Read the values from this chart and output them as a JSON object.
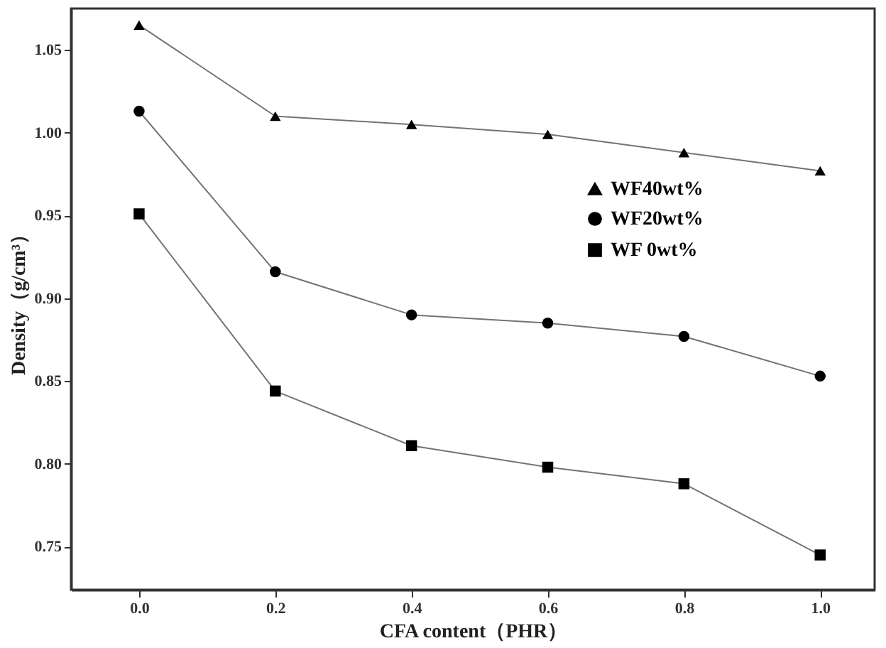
{
  "chart_data": {
    "type": "line",
    "xlabel": "CFA content（PHR）",
    "ylabel": "Density（g/cm³）",
    "x": [
      0.0,
      0.2,
      0.4,
      0.6,
      0.8,
      1.0
    ],
    "series": [
      {
        "name": "WF40wt%",
        "color": "#000000",
        "marker": "triangle",
        "values": [
          1.065,
          1.01,
          1.005,
          0.999,
          0.988,
          0.977
        ]
      },
      {
        "name": "WF20wt%",
        "color": "#000000",
        "marker": "circle",
        "values": [
          1.013,
          0.916,
          0.89,
          0.885,
          0.877,
          0.853
        ]
      },
      {
        "name": "WF 0wt%",
        "color": "#000000",
        "marker": "square",
        "values": [
          0.951,
          0.844,
          0.811,
          0.798,
          0.788,
          0.745
        ]
      }
    ],
    "xlim": [
      -0.1,
      1.08
    ],
    "ylim": [
      0.724,
      1.075
    ],
    "xticks": [
      {
        "value": 0.0,
        "label": "0.0"
      },
      0.2,
      0.4,
      0.6,
      0.8,
      {
        "value": 1.0,
        "label": "1.0"
      }
    ],
    "yticks": [
      0.75,
      {
        "value": 0.8,
        "label": "0.80"
      },
      0.85,
      {
        "value": 0.9,
        "label": "0.90"
      },
      0.95,
      {
        "value": 1.0,
        "label": "1.00"
      },
      1.05
    ],
    "grid": false,
    "legend": "right",
    "line_style": "solid"
  }
}
